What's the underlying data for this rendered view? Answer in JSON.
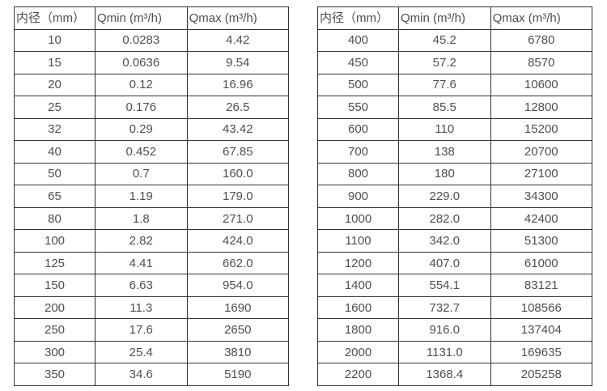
{
  "tables": [
    {
      "name": "small-diameter-flow-table",
      "headers": [
        "内径（mm）",
        "Qmin (m³/h)",
        "Qmax (m³/h)"
      ],
      "rows": [
        [
          "10",
          "0.0283",
          "4.42"
        ],
        [
          "15",
          "0.0636",
          "9.54"
        ],
        [
          "20",
          "0.12",
          "16.96"
        ],
        [
          "25",
          "0.176",
          "26.5"
        ],
        [
          "32",
          "0.29",
          "43.42"
        ],
        [
          "40",
          "0.452",
          "67.85"
        ],
        [
          "50",
          "0.7",
          "160.0"
        ],
        [
          "65",
          "1.19",
          "179.0"
        ],
        [
          "80",
          "1.8",
          "271.0"
        ],
        [
          "100",
          "2.82",
          "424.0"
        ],
        [
          "125",
          "4.41",
          "662.0"
        ],
        [
          "150",
          "6.63",
          "954.0"
        ],
        [
          "200",
          "11.3",
          "1690"
        ],
        [
          "250",
          "17.6",
          "2650"
        ],
        [
          "300",
          "25.4",
          "3810"
        ],
        [
          "350",
          "34.6",
          "5190"
        ]
      ]
    },
    {
      "name": "large-diameter-flow-table",
      "headers": [
        "内径（mm）",
        "Qmin (m³/h)",
        "Qmax (m³/h)"
      ],
      "rows": [
        [
          "400",
          "45.2",
          "6780"
        ],
        [
          "450",
          "57.2",
          "8570"
        ],
        [
          "500",
          "77.6",
          "10600"
        ],
        [
          "550",
          "85.5",
          "12800"
        ],
        [
          "600",
          "110",
          "15200"
        ],
        [
          "700",
          "138",
          "20700"
        ],
        [
          "800",
          "180",
          "27100"
        ],
        [
          "900",
          "229.0",
          "34300"
        ],
        [
          "1000",
          "282.0",
          "42400"
        ],
        [
          "1100",
          "342.0",
          "51300"
        ],
        [
          "1200",
          "407.0",
          "61000"
        ],
        [
          "1400",
          "554.1",
          "83121"
        ],
        [
          "1600",
          "732.7",
          "108566"
        ],
        [
          "1800",
          "916.0",
          "137404"
        ],
        [
          "2000",
          "1131.0",
          "169635"
        ],
        [
          "2200",
          "1368.4",
          "205258"
        ]
      ]
    }
  ]
}
